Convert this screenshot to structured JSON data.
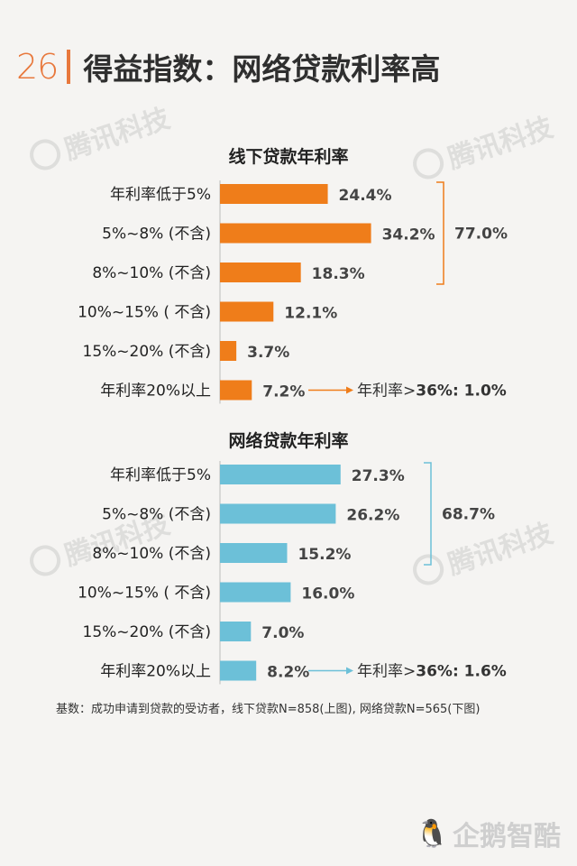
{
  "header": {
    "page_number": "26",
    "title": "得益指数：网络贷款利率高"
  },
  "chart_data": [
    {
      "type": "bar",
      "orientation": "horizontal",
      "title": "线下贷款年利率",
      "categories": [
        "年利率低于5%",
        "5%~8% (不含)",
        "8%~10% (不含)",
        "10%~15% ( 不含)",
        "15%~20% (不含)",
        "年利率20%以上"
      ],
      "values": [
        24.4,
        34.2,
        18.3,
        12.1,
        3.7,
        7.2
      ],
      "value_labels": [
        "24.4%",
        "34.2%",
        "18.3%",
        "12.1%",
        "3.7%",
        "7.2%"
      ],
      "color": "#ef7d1a",
      "bracket": {
        "covers": [
          0,
          2
        ],
        "label": "77.0%"
      },
      "note": {
        "prefix": "年利率>",
        "bold": "36%: 1.0%"
      }
    },
    {
      "type": "bar",
      "orientation": "horizontal",
      "title": "网络贷款年利率",
      "categories": [
        "年利率低于5%",
        "5%~8% (不含)",
        "8%~10% (不含)",
        "10%~15% ( 不含)",
        "15%~20% (不含)",
        "年利率20%以上"
      ],
      "values": [
        27.3,
        26.2,
        15.2,
        16.0,
        7.0,
        8.2
      ],
      "value_labels": [
        "27.3%",
        "26.2%",
        "15.2%",
        "16.0%",
        "7.0%",
        "8.2%"
      ],
      "color": "#6cc0d8",
      "bracket": {
        "covers": [
          0,
          2
        ],
        "label": "68.7%"
      },
      "note": {
        "prefix": "年利率>",
        "bold": "36%: 1.6%"
      }
    }
  ],
  "footnote": "基数：成功申请到贷款的受访者，线下贷款N=858(上图), 网络贷款N=565(下图)",
  "watermark_text": "腾讯科技",
  "logo_text": "企鹅智酷",
  "colors": {
    "accent": "#e8783c"
  }
}
